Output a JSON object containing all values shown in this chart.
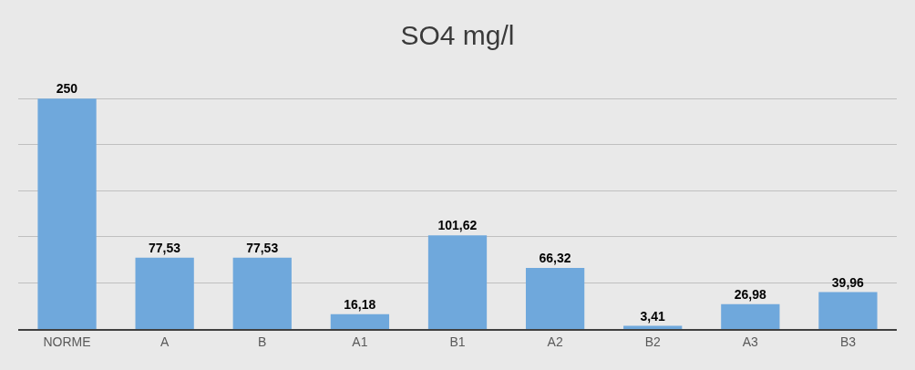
{
  "chart_data": {
    "type": "bar",
    "title": "SO4 mg/l",
    "categories": [
      "NORME",
      "A",
      "B",
      "A1",
      "B1",
      "A2",
      "B2",
      "A3",
      "B3"
    ],
    "values": [
      250,
      77.53,
      77.53,
      16.18,
      101.62,
      66.32,
      3.41,
      26.98,
      39.96
    ],
    "value_labels": [
      "250",
      "77,53",
      "77,53",
      "16,18",
      "101,62",
      "66,32",
      "3,41",
      "26,98",
      "39,96"
    ],
    "color": "#6fa8dc",
    "yticks": [
      {
        "value": 0,
        "label": null
      },
      {
        "value": 50,
        "label": null
      },
      {
        "value": 100,
        "label": null
      },
      {
        "value": 150,
        "label": null
      },
      {
        "value": 200,
        "label": null
      },
      {
        "value": 250,
        "label": null
      }
    ],
    "grid": "y",
    "tick_labels": "x",
    "legend": false
  }
}
